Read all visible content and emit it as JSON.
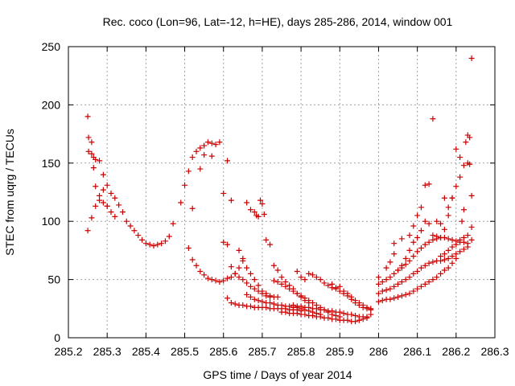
{
  "chart_data": {
    "type": "scatter",
    "title": "Rec. coco (Lon=96, Lat=-12, h=HE), days 285-286, 2014, window 001",
    "xlabel": "GPS time / Days of year 2014",
    "ylabel": "STEC from uqrg / TECUs",
    "xlim": [
      285.2,
      286.3
    ],
    "ylim": [
      0,
      250
    ],
    "x_ticks": [
      285.2,
      285.3,
      285.4,
      285.5,
      285.6,
      285.7,
      285.8,
      285.9,
      286.0,
      286.1,
      286.2,
      286.3
    ],
    "x_tick_labels": [
      "285.2",
      "285.3",
      "285.4",
      "285.5",
      "285.6",
      "285.7",
      "285.8",
      "285.9",
      "286",
      "286.1",
      "286.2",
      "286.3"
    ],
    "y_ticks": [
      0,
      50,
      100,
      150,
      200,
      250
    ],
    "y_tick_labels": [
      "0",
      "50",
      "100",
      "150",
      "200",
      "250"
    ],
    "grid": true,
    "marker": "plus",
    "color": "#cc0000",
    "series": [
      {
        "x": [
          285.25,
          285.252,
          285.26,
          285.265,
          285.27,
          285.28,
          285.29,
          285.3,
          285.31,
          285.32,
          285.33,
          285.34,
          285.35,
          285.36,
          285.37,
          285.38,
          285.39,
          285.4,
          285.41,
          285.42,
          285.43,
          285.44,
          285.45,
          285.46
        ],
        "y": [
          190,
          172,
          168,
          155,
          153,
          152,
          140,
          131,
          124,
          120,
          114,
          108,
          100,
          96,
          92,
          88,
          84,
          81,
          80,
          79,
          80,
          81,
          83,
          87
        ]
      },
      {
        "x": [
          285.252,
          285.26,
          285.265,
          285.27,
          285.28,
          285.29,
          285.3,
          285.31,
          285.32
        ],
        "y": [
          160,
          158,
          146,
          130,
          118,
          116,
          113,
          108,
          104
        ]
      },
      {
        "x": [
          285.25,
          285.26,
          285.27,
          285.28,
          285.29,
          285.3
        ],
        "y": [
          92,
          103,
          113,
          122,
          127,
          113
        ]
      },
      {
        "x": [
          285.47,
          285.49,
          285.5,
          285.51,
          285.52,
          285.53,
          285.54,
          285.55,
          285.56,
          285.57,
          285.58,
          285.59,
          285.6,
          285.61
        ],
        "y": [
          98,
          116,
          131,
          143,
          155,
          160,
          163,
          165,
          168,
          167,
          166,
          168,
          124,
          152
        ]
      },
      {
        "x": [
          285.52,
          285.54,
          285.55,
          285.57
        ],
        "y": [
          111,
          145,
          157,
          156
        ]
      },
      {
        "x": [
          285.51,
          285.52,
          285.53,
          285.54,
          285.55,
          285.56,
          285.57,
          285.58,
          285.59,
          285.6,
          285.61,
          285.62,
          285.63,
          285.64,
          285.65
        ],
        "y": [
          77,
          67,
          62,
          57,
          54,
          51,
          50,
          49,
          48,
          49,
          51,
          52,
          55,
          60,
          66
        ]
      },
      {
        "x": [
          285.6,
          285.61,
          285.62,
          285.63,
          285.64,
          285.65,
          285.66,
          285.67,
          285.68,
          285.69,
          285.7,
          285.71,
          285.72
        ],
        "y": [
          82,
          80,
          61,
          55,
          52,
          50,
          47,
          44,
          42,
          40,
          38,
          36,
          35
        ]
      },
      {
        "x": [
          285.62,
          285.66,
          285.67,
          285.68,
          285.685,
          285.69,
          285.695,
          285.7,
          285.705
        ],
        "y": [
          118,
          116,
          110,
          108,
          105,
          104,
          118,
          115,
          106
        ]
      },
      {
        "x": [
          285.64,
          285.65,
          285.66,
          285.67,
          285.68,
          285.69,
          285.7,
          285.71,
          285.72,
          285.73,
          285.74
        ],
        "y": [
          75,
          68,
          60,
          55,
          50,
          45,
          40,
          38,
          36,
          35,
          35
        ]
      },
      {
        "x": [
          285.61,
          285.62,
          285.63,
          285.64,
          285.65,
          285.66,
          285.67,
          285.68,
          285.69,
          285.7,
          285.71,
          285.72,
          285.73,
          285.74,
          285.75,
          285.76,
          285.77,
          285.78,
          285.79,
          285.8
        ],
        "y": [
          34,
          30,
          29,
          28,
          28,
          27,
          27,
          26,
          26,
          26,
          26,
          25,
          25,
          25,
          25,
          25,
          24,
          24,
          24,
          23
        ]
      },
      {
        "x": [
          285.66,
          285.67,
          285.68,
          285.69,
          285.7,
          285.71,
          285.72,
          285.73,
          285.74,
          285.75,
          285.76,
          285.77,
          285.78,
          285.79,
          285.8,
          285.81,
          285.82,
          285.83,
          285.84,
          285.85
        ],
        "y": [
          37,
          35,
          33,
          32,
          31,
          30,
          30,
          29,
          28,
          28,
          27,
          27,
          26,
          26,
          25,
          24,
          23,
          22,
          21,
          20
        ]
      },
      {
        "x": [
          285.71,
          285.72,
          285.73,
          285.74,
          285.75,
          285.76,
          285.77,
          285.78,
          285.79,
          285.8,
          285.81,
          285.82
        ],
        "y": [
          84,
          80,
          62,
          58,
          52,
          48,
          45,
          42,
          38,
          35,
          32,
          30
        ]
      },
      {
        "x": [
          285.73,
          285.74,
          285.75,
          285.76,
          285.77,
          285.78,
          285.79,
          285.8,
          285.81,
          285.82,
          285.83,
          285.84,
          285.85,
          285.86,
          285.87,
          285.88,
          285.89,
          285.9
        ],
        "y": [
          49,
          48,
          46,
          44,
          42,
          40,
          38,
          36,
          34,
          32,
          30,
          28,
          26,
          24,
          22,
          20,
          19,
          18
        ]
      },
      {
        "x": [
          285.75,
          285.76,
          285.77,
          285.78,
          285.79,
          285.8,
          285.81,
          285.82,
          285.83,
          285.84,
          285.85,
          285.86,
          285.87,
          285.88,
          285.89,
          285.9,
          285.91,
          285.92,
          285.93,
          285.94,
          285.95,
          285.96,
          285.97,
          285.98
        ],
        "y": [
          22,
          22,
          21,
          21,
          21,
          20,
          20,
          19,
          19,
          18,
          18,
          17,
          17,
          16,
          16,
          15,
          15,
          15,
          14,
          14,
          15,
          16,
          18,
          20
        ]
      },
      {
        "x": [
          285.79,
          285.8,
          285.81,
          285.82,
          285.83,
          285.84,
          285.85,
          285.86,
          285.87,
          285.88,
          285.89,
          285.9,
          285.91,
          285.92,
          285.93,
          285.94,
          285.95,
          285.96,
          285.97,
          285.98
        ],
        "y": [
          57,
          52,
          50,
          55,
          54,
          52,
          50,
          47,
          45,
          43,
          42,
          40,
          38,
          36,
          33,
          30,
          28,
          26,
          25,
          24
        ]
      },
      {
        "x": [
          285.78,
          285.79,
          285.8,
          285.81,
          285.82,
          285.83,
          285.84,
          285.85,
          285.86,
          285.87,
          285.88,
          285.89,
          285.9,
          285.91,
          285.92,
          285.93,
          285.94,
          285.95,
          285.96,
          285.97
        ],
        "y": [
          28,
          27,
          27,
          26,
          26,
          25,
          25,
          24,
          24,
          23,
          23,
          22,
          22,
          21,
          20,
          20,
          19,
          18,
          18,
          17
        ]
      },
      {
        "x": [
          285.88,
          285.89,
          285.9,
          285.91,
          285.92,
          285.93,
          285.94,
          285.95,
          285.96,
          285.97,
          285.98
        ],
        "y": [
          46,
          43,
          44,
          40,
          38,
          35,
          32,
          30,
          28,
          26,
          25
        ]
      },
      {
        "x": [
          286.0,
          286.01,
          286.02,
          286.03,
          286.04,
          286.05,
          286.06,
          286.07,
          286.08,
          286.09,
          286.1,
          286.11,
          286.12,
          286.13,
          286.14,
          286.15,
          286.16,
          286.17,
          286.18,
          286.19,
          286.2
        ],
        "y": [
          31,
          32,
          33,
          33,
          34,
          35,
          36,
          37,
          38,
          40,
          42,
          44,
          46,
          48,
          50,
          52,
          55,
          58,
          60,
          64,
          68
        ]
      },
      {
        "x": [
          286.0,
          286.01,
          286.02,
          286.03,
          286.04,
          286.05,
          286.06,
          286.07,
          286.08,
          286.09,
          286.1,
          286.11,
          286.12,
          286.13,
          286.14,
          286.15,
          286.16,
          286.17,
          286.18,
          286.19,
          286.2,
          286.21,
          286.22,
          286.23
        ],
        "y": [
          38,
          40,
          41,
          42,
          44,
          46,
          48,
          50,
          52,
          55,
          57,
          60,
          62,
          64,
          65,
          66,
          66,
          67,
          68,
          70,
          72,
          74,
          76,
          78
        ]
      },
      {
        "x": [
          286.0,
          286.01,
          286.02,
          286.03,
          286.04,
          286.05,
          286.06,
          286.07,
          286.08,
          286.09,
          286.1,
          286.11,
          286.12,
          286.13,
          286.14,
          286.15,
          286.16,
          286.17,
          286.18,
          286.19,
          286.2,
          286.21,
          286.22,
          286.23
        ],
        "y": [
          46,
          48,
          50,
          52,
          55,
          58,
          60,
          63,
          66,
          70,
          74,
          77,
          80,
          82,
          84,
          85,
          86,
          86,
          85,
          84,
          83,
          82,
          82,
          81
        ]
      },
      {
        "x": [
          286.0,
          286.02,
          286.03,
          286.04,
          286.05,
          286.06,
          286.07,
          286.08,
          286.09,
          286.1,
          286.11,
          286.12,
          286.13,
          286.14,
          286.15,
          286.16,
          286.17,
          286.18,
          286.19
        ],
        "y": [
          52,
          60,
          65,
          72,
          58,
          62,
          68,
          75,
          82,
          86,
          92,
          100,
          98,
          88,
          87,
          86,
          93,
          112,
          120
        ]
      },
      {
        "x": [
          286.04,
          286.06,
          286.08,
          286.09,
          286.1,
          286.11,
          286.12,
          286.13,
          286.14,
          286.15,
          286.16,
          286.17,
          286.18,
          286.19,
          286.2,
          286.21,
          286.22,
          286.23,
          286.235,
          286.24
        ],
        "y": [
          81,
          85,
          88,
          96,
          105,
          112,
          131,
          132,
          188,
          100,
          98,
          120,
          105,
          120,
          162,
          155,
          148,
          150,
          172,
          122
        ]
      },
      {
        "x": [
          286.2,
          286.21,
          286.215,
          286.22,
          286.225,
          286.23,
          286.235,
          286.24
        ],
        "y": [
          130,
          138,
          100,
          110,
          168,
          174,
          149,
          84
        ]
      },
      {
        "x": [
          286.16,
          286.17,
          286.18,
          286.19,
          286.2,
          286.21,
          286.22,
          286.23,
          286.24
        ],
        "y": [
          70,
          72,
          75,
          78,
          80,
          84,
          86,
          88,
          95
        ]
      },
      {
        "x": [
          286.24
        ],
        "y": [
          240
        ]
      }
    ]
  }
}
